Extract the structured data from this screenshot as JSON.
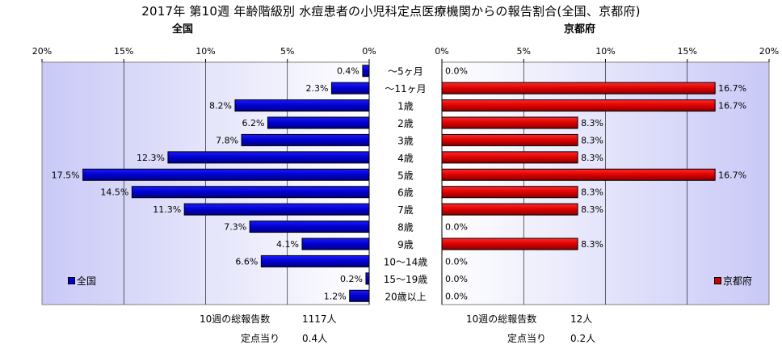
{
  "title": "2017年 第10週 年齢階級別 水痘患者の小児科定点医療機関からの報告割合(全国、京都府)",
  "chart_data": [
    {
      "type": "bar",
      "orientation": "horizontal",
      "panel_label": "全国",
      "axis_direction": "reversed",
      "categories": [
        "～5ヶ月",
        "～11ヶ月",
        "1歳",
        "2歳",
        "3歳",
        "4歳",
        "5歳",
        "6歳",
        "7歳",
        "8歳",
        "9歳",
        "10～14歳",
        "15～19歳",
        "20歳以上"
      ],
      "series": [
        {
          "name": "全国",
          "color": "#0000cc",
          "values": [
            0.4,
            2.3,
            8.2,
            6.2,
            7.8,
            12.3,
            17.5,
            14.5,
            11.3,
            7.3,
            4.1,
            6.6,
            0.2,
            1.2
          ],
          "labels": [
            "0.4%",
            "2.3%",
            "8.2%",
            "6.2%",
            "7.8%",
            "12.3%",
            "17.5%",
            "14.5%",
            "11.3%",
            "7.3%",
            "4.1%",
            "6.6%",
            "0.2%",
            "1.2%"
          ]
        }
      ],
      "xlim": [
        0,
        20
      ],
      "ticks": [
        0,
        5,
        10,
        15,
        20
      ],
      "tick_labels": [
        "0%",
        "5%",
        "10%",
        "15%",
        "20%"
      ],
      "grid": true,
      "legend_position": "bottom-left",
      "footer": [
        {
          "label": "10週の総報告数",
          "value": "1117人"
        },
        {
          "label": "定点当り",
          "value": "0.4人"
        }
      ]
    },
    {
      "type": "bar",
      "orientation": "horizontal",
      "panel_label": "京都府",
      "axis_direction": "normal",
      "categories": [
        "～5ヶ月",
        "～11ヶ月",
        "1歳",
        "2歳",
        "3歳",
        "4歳",
        "5歳",
        "6歳",
        "7歳",
        "8歳",
        "9歳",
        "10～14歳",
        "15～19歳",
        "20歳以上"
      ],
      "series": [
        {
          "name": "京都府",
          "color": "#cc0000",
          "values": [
            0.0,
            16.7,
            16.7,
            8.3,
            8.3,
            8.3,
            16.7,
            8.3,
            8.3,
            0.0,
            8.3,
            0.0,
            0.0,
            0.0
          ],
          "labels": [
            "0.0%",
            "16.7%",
            "16.7%",
            "8.3%",
            "8.3%",
            "8.3%",
            "16.7%",
            "8.3%",
            "8.3%",
            "0.0%",
            "8.3%",
            "0.0%",
            "0.0%",
            "0.0%"
          ]
        }
      ],
      "xlim": [
        0,
        20
      ],
      "ticks": [
        0,
        5,
        10,
        15,
        20
      ],
      "tick_labels": [
        "0%",
        "5%",
        "10%",
        "15%",
        "20%"
      ],
      "grid": true,
      "legend_position": "bottom-right",
      "footer": [
        {
          "label": "10週の総報告数",
          "value": "12人"
        },
        {
          "label": "定点当り",
          "value": "0.2人"
        }
      ]
    }
  ]
}
